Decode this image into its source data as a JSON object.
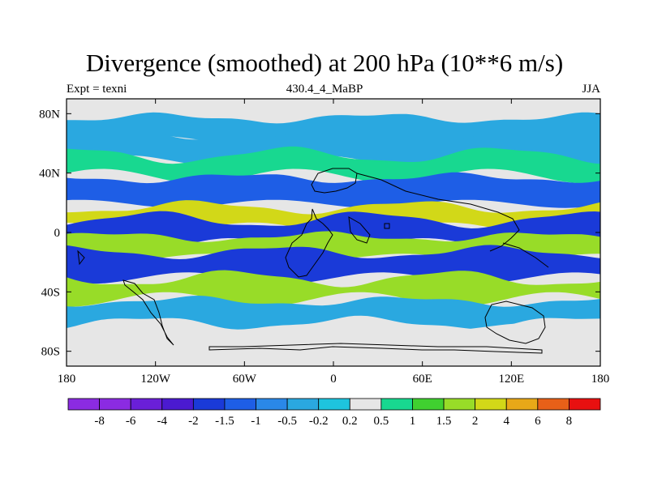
{
  "chart_data": {
    "type": "heatmap",
    "title": "Divergence (smoothed) at 200 hPa (10**6 m/s)",
    "subtitle_left": "Expt = texni",
    "subtitle_center": "430.4_4_MaBP",
    "subtitle_right": "JJA",
    "x_ticks": [
      "180",
      "120W",
      "60W",
      "0",
      "60E",
      "120E",
      "180"
    ],
    "x_tick_values": [
      -180,
      -120,
      -60,
      0,
      60,
      120,
      180
    ],
    "y_ticks": [
      "80N",
      "40N",
      "0",
      "40S",
      "80S"
    ],
    "y_tick_values": [
      80,
      40,
      0,
      -40,
      -80
    ],
    "xlim": [
      -180,
      180
    ],
    "ylim": [
      -90,
      90
    ],
    "colorbar": {
      "labels": [
        "-8",
        "-6",
        "-4",
        "-2",
        "-1.5",
        "-1",
        "-0.5",
        "-0.2",
        "0.2",
        "0.5",
        "1",
        "1.5",
        "2",
        "4",
        "6",
        "8"
      ],
      "colors": [
        "#8b2be2",
        "#6a1fd8",
        "#4b1ad0",
        "#1a3ad8",
        "#1e5ee6",
        "#2a88e8",
        "#2aa8e0",
        "#1ec4de",
        "#e6e6e6",
        "#18d890",
        "#40d030",
        "#98dc28",
        "#d2d818",
        "#e8a818",
        "#e86018",
        "#e81010"
      ]
    },
    "bands": [
      {
        "lat": 70,
        "value": "-0.5"
      },
      {
        "lat": 57,
        "value": "-0.5"
      },
      {
        "lat": 45,
        "value": "0.5"
      },
      {
        "lat": 28,
        "value": "-1.5"
      },
      {
        "lat": 10,
        "value": "2"
      },
      {
        "lat": 0,
        "value": "-2"
      },
      {
        "lat": -10,
        "value": "1.5"
      },
      {
        "lat": -22,
        "value": "-2"
      },
      {
        "lat": -38,
        "value": "1.5"
      },
      {
        "lat": -55,
        "value": "-0.5"
      },
      {
        "lat": -68,
        "value": "0.2"
      }
    ]
  }
}
